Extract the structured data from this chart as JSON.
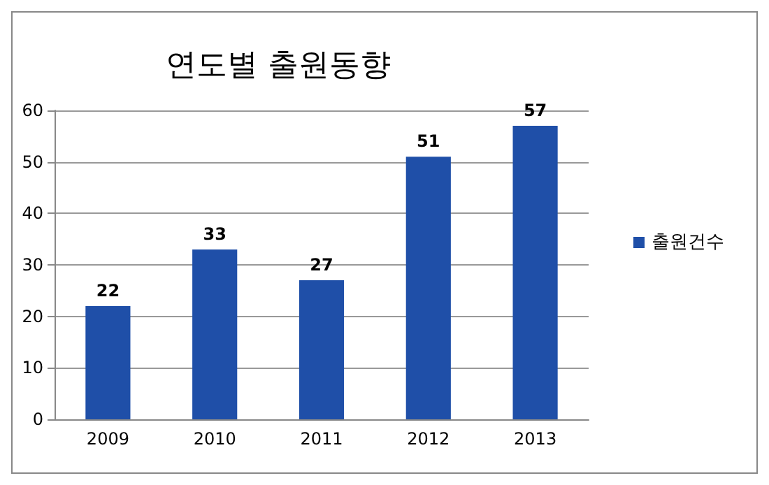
{
  "chart_data": {
    "type": "bar",
    "title": "연도별 출원동향",
    "categories": [
      "2009",
      "2010",
      "2011",
      "2012",
      "2013"
    ],
    "series": [
      {
        "name": "출원건수",
        "color": "#1f4fa8",
        "values": [
          22,
          33,
          27,
          51,
          57
        ]
      }
    ],
    "ylim": [
      0,
      60
    ],
    "yticks": [
      0,
      10,
      20,
      30,
      40,
      50,
      60
    ],
    "grid": "y",
    "legend": "right",
    "data_labels": true
  }
}
